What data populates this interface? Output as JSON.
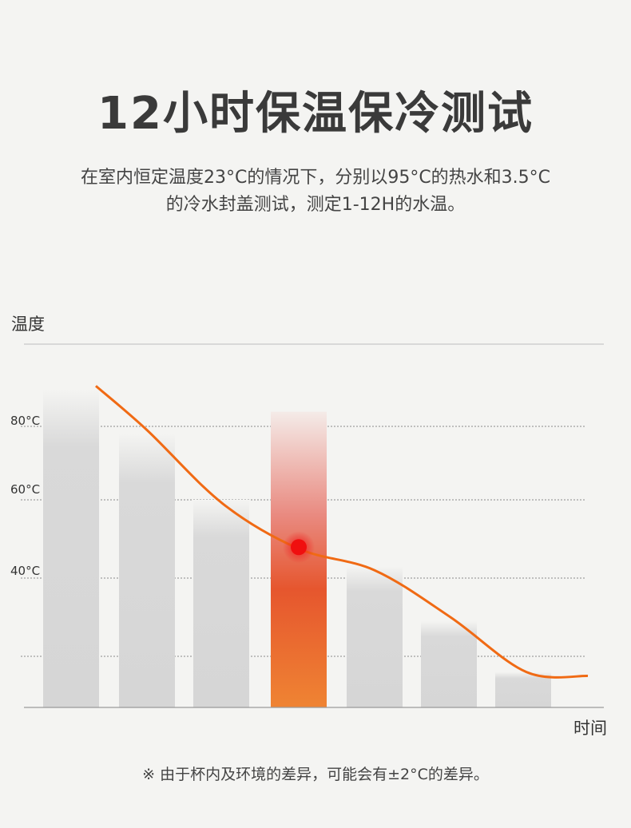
{
  "page": {
    "title": "12小时保温保冷测试",
    "description_line1": "在室内恒定温度23°C的情况下，分别以95°C的热水和3.5°C",
    "description_line2": "的冷水封盖测试，测定1-12H的水温。",
    "note": "※ 由于杯内及环境的差异，可能会有±2°C的差异。"
  },
  "chart_data": {
    "type": "bar",
    "ylabel": "温度",
    "xlabel": "时间",
    "y_ticks": [
      "80°C",
      "60°C",
      "40°C"
    ],
    "bars": [
      {
        "value": 90,
        "highlight": false
      },
      {
        "value": 78,
        "highlight": false
      },
      {
        "value": 60,
        "highlight": false
      },
      {
        "value": 84,
        "highlight": true
      },
      {
        "value": 43,
        "highlight": false
      },
      {
        "value": 29,
        "highlight": false
      },
      {
        "value": 16,
        "highlight": false
      }
    ],
    "curve": [
      [
        0.5,
        91
      ],
      [
        1.5,
        79
      ],
      [
        2.5,
        59
      ],
      [
        3.5,
        47.5
      ],
      [
        4.5,
        42
      ],
      [
        5.5,
        30
      ],
      [
        6.5,
        16
      ],
      [
        7.2,
        15
      ]
    ],
    "marker_bar_index": 3,
    "ylim": [
      0,
      100
    ],
    "gridlines": [
      80,
      60,
      40,
      20
    ],
    "colors": {
      "bar": "#d9d9d9",
      "highlight_top": "#f7e3e0",
      "highlight_bottom": "#ef7a2a",
      "curve": "#f06a14",
      "marker": "#f00f0f"
    }
  }
}
